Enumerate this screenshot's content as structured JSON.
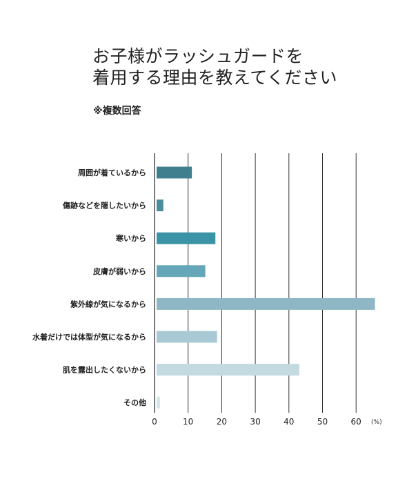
{
  "title_lines": [
    "お子様がラッシュガードを",
    "着用する理由を教えてください"
  ],
  "subtitle": "※複数回答",
  "chart_data": {
    "type": "bar",
    "orientation": "horizontal",
    "categories": [
      "周囲が着ているから",
      "傷跡などを隠したいから",
      "寒いから",
      "皮膚が弱いから",
      "紫外線が気になるから",
      "水着だけでは体型が気になるから",
      "肌を露出したくないから",
      "その他"
    ],
    "values": [
      10.5,
      2,
      17.5,
      14.5,
      65,
      18,
      42.5,
      1
    ],
    "colors": [
      "#3f7f8e",
      "#4a8d9c",
      "#3b94a6",
      "#65a6b8",
      "#8fb6c4",
      "#a9c9d4",
      "#c3dae1",
      "#d4e5ea"
    ],
    "xlim": [
      0,
      66
    ],
    "xticks": [
      "0",
      "10",
      "20",
      "30",
      "40",
      "50",
      "60"
    ],
    "unit": "(%)",
    "grid": true
  }
}
